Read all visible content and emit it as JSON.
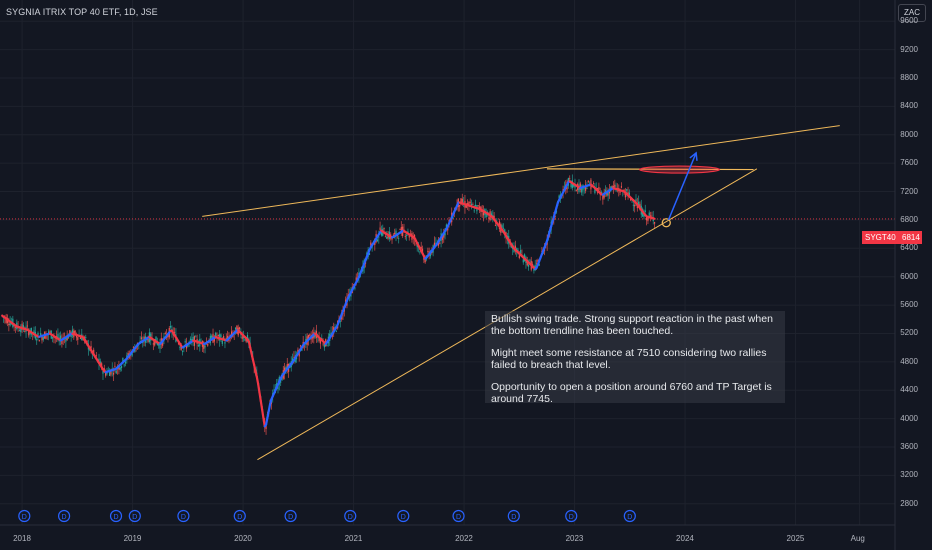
{
  "header": {
    "title": "SYGNIA ITRIX TOP 40 ETF, 1D, JSE",
    "currency": "ZAC"
  },
  "price_label": {
    "symbol": "SYGT40",
    "price": "6814"
  },
  "colors": {
    "bg": "#131722",
    "candle_up": "#26a69a",
    "candle_down": "#ef5350",
    "ma_up": "#2962ff",
    "ma_down": "#f23645",
    "trendline": "#f0b95a",
    "arrow": "#2962ff",
    "resistance_ellipse": "#f23645"
  },
  "note": {
    "p1": "Bullish swing trade. Strong support reaction in the past when the bottom trendline has been touched.",
    "p2": "Might meet some resistance at 7510 considering two rallies failed to breach that level.",
    "p3": "Opportunity to open a position around 6760 and TP Target is around 7745."
  },
  "chart_data": {
    "type": "line",
    "title": "SYGNIA ITRIX TOP 40 ETF, 1D, JSE",
    "currency": "ZAC",
    "yticks": [
      2800,
      3200,
      3600,
      4000,
      4400,
      4800,
      5200,
      5600,
      6000,
      6400,
      6800,
      7200,
      7600,
      8000,
      8400,
      8800,
      9200,
      9600
    ],
    "ylim": [
      2500,
      9900
    ],
    "xticks": [
      "2018",
      "2019",
      "2020",
      "2021",
      "2022",
      "2023",
      "2024",
      "2025",
      "Aug"
    ],
    "xlim": [
      2017.8,
      2025.9
    ],
    "tick_dates": [
      2018.0,
      2019.0,
      2020.0,
      2021.0,
      2022.0,
      2023.0,
      2024.0,
      2025.0,
      2025.58
    ],
    "series": [
      {
        "x": [
          2017.82,
          2017.95,
          2018.05,
          2018.15,
          2018.25,
          2018.35,
          2018.45,
          2018.55,
          2018.65,
          2018.75,
          2018.85,
          2018.95,
          2019.05,
          2019.15,
          2019.25,
          2019.35,
          2019.45,
          2019.55,
          2019.65,
          2019.75,
          2019.85,
          2019.95,
          2020.05,
          2020.13,
          2020.2,
          2020.25,
          2020.35,
          2020.45,
          2020.55,
          2020.65,
          2020.75,
          2020.85,
          2020.95,
          2021.05,
          2021.15,
          2021.25,
          2021.35,
          2021.45,
          2021.55,
          2021.65,
          2021.75,
          2021.85,
          2021.95,
          2022.05,
          2022.15,
          2022.25,
          2022.35,
          2022.45,
          2022.55,
          2022.65,
          2022.75,
          2022.85,
          2022.95,
          2023.05,
          2023.15,
          2023.25,
          2023.35,
          2023.45,
          2023.55,
          2023.65,
          2023.73
        ],
        "values": [
          5450,
          5300,
          5250,
          5150,
          5200,
          5100,
          5200,
          5150,
          4900,
          4650,
          4700,
          4850,
          5050,
          5150,
          5050,
          5250,
          5000,
          5100,
          5050,
          5150,
          5100,
          5250,
          5100,
          4550,
          3850,
          4250,
          4600,
          4800,
          5050,
          5200,
          5050,
          5300,
          5700,
          6000,
          6400,
          6650,
          6550,
          6650,
          6550,
          6250,
          6450,
          6700,
          7050,
          7000,
          6950,
          6850,
          6650,
          6400,
          6250,
          6100,
          6500,
          7050,
          7350,
          7250,
          7300,
          7150,
          7250,
          7200,
          7050,
          6850,
          6814
        ]
      }
    ],
    "annotations": {
      "upper_trendline": [
        [
          2019.63,
          6850
        ],
        [
          2025.4,
          8130
        ]
      ],
      "lower_trendline": [
        [
          2020.13,
          3420
        ],
        [
          2024.65,
          7520
        ]
      ],
      "resistance_line": [
        [
          2022.75,
          7520
        ],
        [
          2024.62,
          7510
        ]
      ],
      "resistance_zone": [
        2023.95,
        7510
      ],
      "entry_marker": [
        2023.83,
        6760
      ],
      "target_arrow": [
        [
          2023.85,
          6800
        ],
        [
          2024.1,
          7745
        ]
      ]
    },
    "dividend_markers": [
      2018.02,
      2018.38,
      2018.85,
      2019.02,
      2019.46,
      2019.97,
      2020.43,
      2020.97,
      2021.45,
      2021.95,
      2022.45,
      2022.97,
      2023.5
    ]
  }
}
